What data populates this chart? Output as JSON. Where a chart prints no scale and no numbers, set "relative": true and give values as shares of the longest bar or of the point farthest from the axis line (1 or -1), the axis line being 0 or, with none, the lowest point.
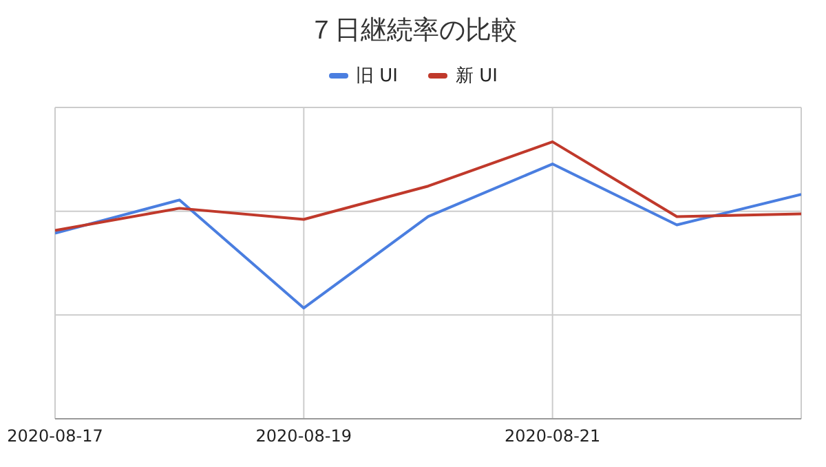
{
  "chart_data": {
    "type": "line",
    "title": "７日継続率の比較",
    "relative": true,
    "x": [
      "2020-08-17",
      "2020-08-18",
      "2020-08-19",
      "2020-08-20",
      "2020-08-21",
      "2020-08-22",
      "2020-08-23"
    ],
    "xlim": [
      "2020-08-17",
      "2020-08-23"
    ],
    "xticks": [
      "2020-08-17",
      "2020-08-19",
      "2020-08-21"
    ],
    "series": [
      {
        "name": "旧 UI",
        "color": "#4a7ee0",
        "values": [
          0.67,
          0.79,
          0.4,
          0.73,
          0.92,
          0.7,
          0.81
        ]
      },
      {
        "name": "新 UI",
        "color": "#c0392b",
        "values": [
          0.68,
          0.76,
          0.72,
          0.84,
          1,
          0.73,
          0.74
        ]
      }
    ],
    "grid": true,
    "legend": "top",
    "marker": "none",
    "line_style": "solid"
  }
}
